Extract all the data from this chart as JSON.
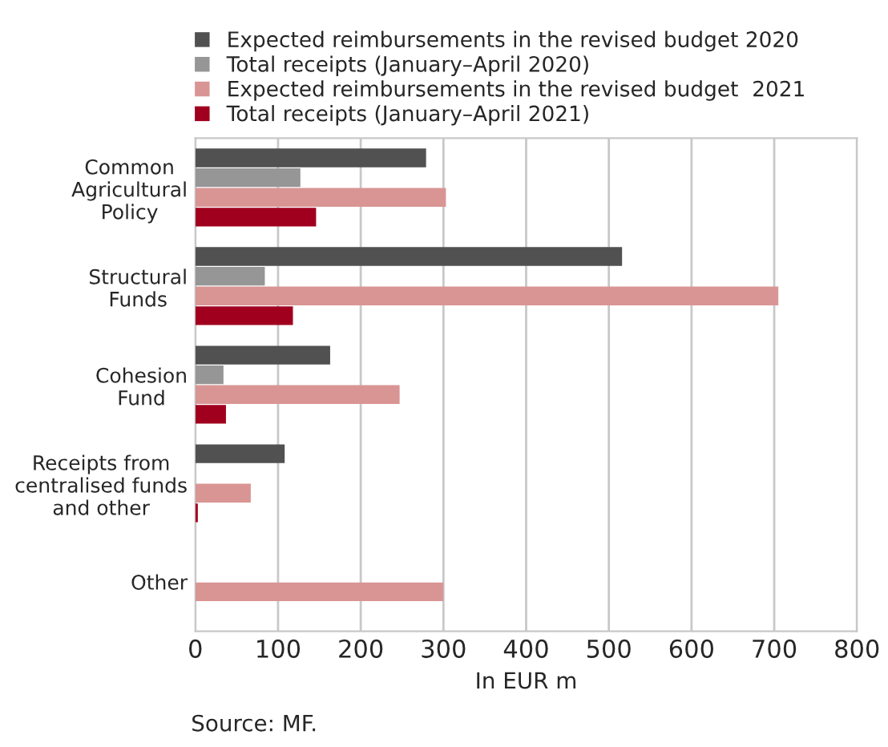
{
  "chart_data": {
    "type": "bar",
    "orientation": "horizontal",
    "xlabel": "In EUR m",
    "categories": [
      "Common\nAgricultural\nPolicy",
      "Structural\nFunds",
      "Cohesion\nFund",
      "Receipts from\ncentralised funds\nand other",
      "Other"
    ],
    "series": [
      {
        "name": "Expected reimbursements in the revised budget 2020",
        "color": "#515151",
        "values": [
          279,
          516,
          163,
          108,
          null
        ]
      },
      {
        "name": "Total receipts (January–April 2020)",
        "color": "#969696",
        "values": [
          127,
          84,
          34,
          null,
          null
        ]
      },
      {
        "name": "Expected reimbursements in the revised budget  2021",
        "color": "#d99594",
        "values": [
          303,
          705,
          247,
          67,
          300
        ]
      },
      {
        "name": "Total receipts (January–April 2021)",
        "color": "#a0001e",
        "values": [
          146,
          118,
          37,
          3,
          null
        ]
      }
    ],
    "xlim": [
      0,
      800
    ],
    "xticks": [
      0,
      100,
      200,
      300,
      400,
      500,
      600,
      700,
      800
    ],
    "grid": "x",
    "legend": "top",
    "annotations": [
      "Source: MF."
    ]
  }
}
